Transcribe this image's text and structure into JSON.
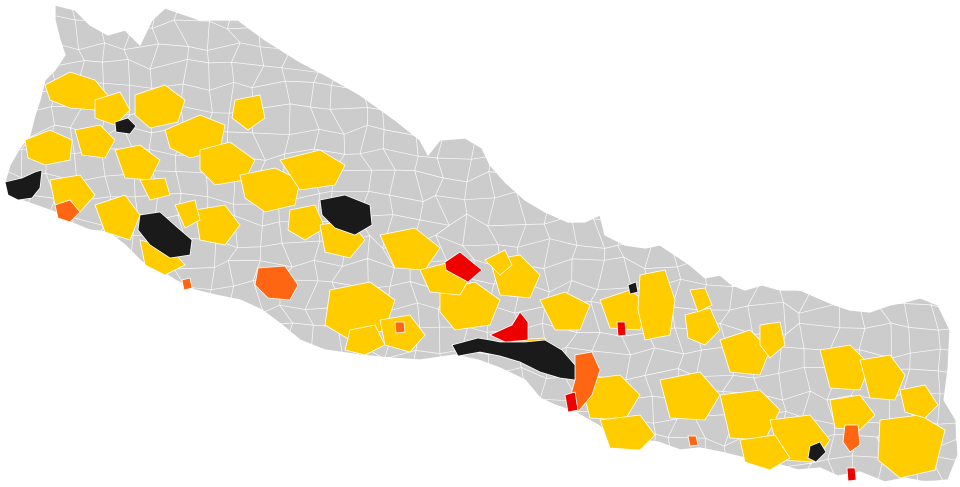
{
  "map": {
    "country_fill": "#cccccc",
    "border_color": "#ffffff",
    "category_colors": {
      "yellow": "#ffcc00",
      "black": "#1a1a1a",
      "red": "#ee0000",
      "orange": "#ff6611"
    }
  }
}
